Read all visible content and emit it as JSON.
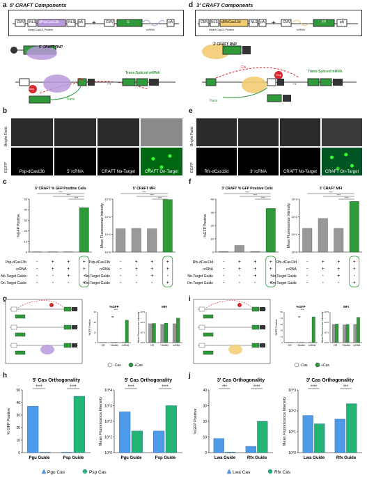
{
  "panels": {
    "a": {
      "letter": "a",
      "title": "5' CRAFT Components",
      "cmv": "CMV",
      "nls": "NLS",
      "protein": "dPspCas13b",
      "pa": "pA",
      "g": "G",
      "caption": "Dead Cas13 Protein",
      "rcrna": "rcRNA",
      "rnp": "5' CRAFT RNP",
      "fp": "FP",
      "stop": "Stop",
      "cis": "Cis",
      "trans": "Trans",
      "result": "Trans-Spliced mRNA"
    },
    "d": {
      "letter": "d",
      "title": "3' CRAFT Components",
      "cmv": "CMV",
      "nls": "NLS",
      "protein": "dRfxCas13d",
      "pa": "pA",
      "fp": "FP",
      "caption": "Dead Cas13 Protein",
      "rcrna": "rcRNA",
      "rnp": "3' CRAFT RNP",
      "g": "G",
      "stop": "Stop",
      "cis": "Cis",
      "trans": "Trans",
      "result": "Trans-Spliced mRNA"
    },
    "b": {
      "letter": "b",
      "row1": "Bright Field",
      "row2": "EGFP",
      "cells": [
        "Psp-dCas13b",
        "5' rcRNA",
        "CRAFT No-Target",
        "CRAFT On-Target"
      ]
    },
    "e": {
      "letter": "e",
      "row1": "Bright Field",
      "row2": "EGFP",
      "cells": [
        "Rfx-dCas13d",
        "3' rcRNA",
        "CRAFT No-Target",
        "CRAFT On-Target"
      ]
    },
    "c": {
      "letter": "c",
      "gfp_title": "5' CRAFT % GFP Positive Cells",
      "mfi_title": "5' CRAFT MFI",
      "gfp_ylabel": "%GFP Positive",
      "mfi_ylabel": "Mean Fluorescence Intensity",
      "sig": "****",
      "rows": [
        "Psp-dCas13b",
        "rcRNA",
        "No-Target Guide",
        "On-Target Guide"
      ]
    },
    "f": {
      "letter": "f",
      "gfp_title": "3' CRAFT % GFP Positive Cells",
      "mfi_title": "3' CRAFT MFI",
      "gfp_ylabel": "%GFP Positive",
      "mfi_ylabel": "Mean Fluorescence Intensity",
      "sig": "****",
      "rows": [
        "Rfx-dCas13d",
        "rcRNA",
        "No-Target Guide",
        "On-Target Guide"
      ]
    },
    "g": {
      "letter": "g",
      "gfp_title": "%GFP",
      "mfi_title": "MFI",
      "gfp_ylabel": "%GFP Positive",
      "mfi_ylabel": "Mean Fluorescence Intensity",
      "cats": [
        "OR",
        "+Stuffer",
        "rcRNA"
      ],
      "ns": "ns",
      "sig": "****",
      "legend": [
        "-Cas",
        "+Cas"
      ]
    },
    "i": {
      "letter": "i",
      "gfp_title": "%GFP",
      "mfi_title": "MFI",
      "gfp_ylabel": "%GFP Positive",
      "mfi_ylabel": "Mean Fluorescence Intensity",
      "cats": [
        "OR",
        "+Stuffer",
        "rcRNA"
      ],
      "ns": "ns",
      "sig": "****",
      "legend": [
        "-Cas",
        "+Cas"
      ]
    },
    "h": {
      "letter": "h",
      "t1": "5' Cas Orthogonality",
      "t2": "5' Cas Orthogonality",
      "y1": "% GFP Positive",
      "y2": "Mean Fluorescence Intensity",
      "cats": [
        "Pgu Guide",
        "Psp Guide"
      ],
      "legend": [
        "Pgu Cas",
        "Psp Cas"
      ],
      "sig": "****"
    },
    "j": {
      "letter": "j",
      "t1": "3' Cas Orthogonality",
      "t2": "3' Cas Orthogonality",
      "y1": "%GFP Positive",
      "y2": "Mean Fluorescence Intensity",
      "cats": [
        "Lwa Guide",
        "Rfx Guide"
      ],
      "legend": [
        "Lwa Cas",
        "Rfx Cas"
      ],
      "sig1": "***",
      "sig2": "****",
      "sig3": "****",
      "sig4": "***"
    }
  },
  "chart_data": [
    {
      "type": "bar",
      "title": "5' CRAFT % GFP Positive Cells",
      "ylabel": "%GFP Positive",
      "ylim": [
        0,
        50
      ],
      "yticks": [
        0,
        10,
        20,
        30,
        40,
        50
      ],
      "values": [
        0.3,
        0.3,
        0.3,
        42
      ],
      "colors": [
        "#999999",
        "#999999",
        "#999999",
        "#2e9a3a"
      ]
    },
    {
      "type": "bar",
      "title": "5' CRAFT MFI",
      "ylabel": "Mean Fluorescence Intensity",
      "scale": "log",
      "ylim": [
        1,
        1000
      ],
      "yticks": [
        "10^0",
        "10^1",
        "10^2",
        "10^3"
      ],
      "values": [
        21,
        22,
        21,
        950
      ]
    },
    {
      "type": "bar",
      "title": "3' CRAFT % GFP Positive Cells",
      "ylabel": "%GFP Positive",
      "ylim": [
        0,
        40
      ],
      "yticks": [
        0,
        10,
        20,
        30,
        40
      ],
      "values": [
        0.5,
        5,
        0.5,
        33
      ]
    },
    {
      "type": "bar",
      "title": "3' CRAFT MFI",
      "ylabel": "Mean Fluorescence Intensity",
      "scale": "log",
      "ylim": [
        1,
        1000
      ],
      "yticks": [
        "10^0",
        "10^1",
        "10^2",
        "10^3"
      ],
      "values": [
        22,
        80,
        22,
        750
      ]
    },
    {
      "type": "bar",
      "title": "5' Cas Orthogonality",
      "ylabel": "% GFP Positive",
      "categories": [
        "Pgu Guide",
        "Psp Guide"
      ],
      "ylim": [
        0,
        50
      ],
      "yticks": [
        0,
        10,
        20,
        30,
        40,
        50
      ],
      "series": [
        {
          "name": "Pgu Cas",
          "values": [
            37,
            0.3
          ]
        },
        {
          "name": "Psp Cas",
          "values": [
            0.3,
            45
          ]
        }
      ]
    },
    {
      "type": "bar",
      "title": "5' Cas Orthogonality",
      "ylabel": "Mean Fluorescence Intensity",
      "categories": [
        "Pgu Guide",
        "Psp Guide"
      ],
      "scale": "log",
      "ylim": [
        1,
        10000
      ],
      "yticks": [
        "10^0",
        "10^1",
        "10^2",
        "10^3",
        "10^4"
      ],
      "series": [
        {
          "name": "Pgu Cas",
          "values": [
            400,
            24
          ]
        },
        {
          "name": "Psp Cas",
          "values": [
            24,
            1000
          ]
        }
      ]
    },
    {
      "type": "bar",
      "title": "3' Cas Orthogonality",
      "ylabel": "%GFP Positive",
      "categories": [
        "Lwa Guide",
        "Rfx Guide"
      ],
      "ylim": [
        0,
        40
      ],
      "yticks": [
        0,
        10,
        20,
        30,
        40
      ],
      "series": [
        {
          "name": "Lwa Cas",
          "values": [
            9,
            4
          ]
        },
        {
          "name": "Rfx Cas",
          "values": [
            0.3,
            20
          ]
        }
      ]
    },
    {
      "type": "bar",
      "title": "3' Cas Orthogonality",
      "ylabel": "Mean Fluorescence Intensity",
      "categories": [
        "Lwa Guide",
        "Rfx Guide"
      ],
      "scale": "log",
      "ylim": [
        1,
        1000
      ],
      "yticks": [
        "10^0",
        "10^1",
        "10^2",
        "10^3"
      ],
      "series": [
        {
          "name": "Lwa Cas",
          "values": [
            60,
            40
          ]
        },
        {
          "name": "Rfx Cas",
          "values": [
            24,
            220
          ]
        }
      ]
    }
  ],
  "colors": {
    "blue": "#4d9be8",
    "green": "#23b574",
    "grey": "#999999",
    "darkgreen": "#2e9a3a",
    "purple": "#b999dd",
    "yellow": "#f2cc72",
    "red": "#d9272e"
  }
}
